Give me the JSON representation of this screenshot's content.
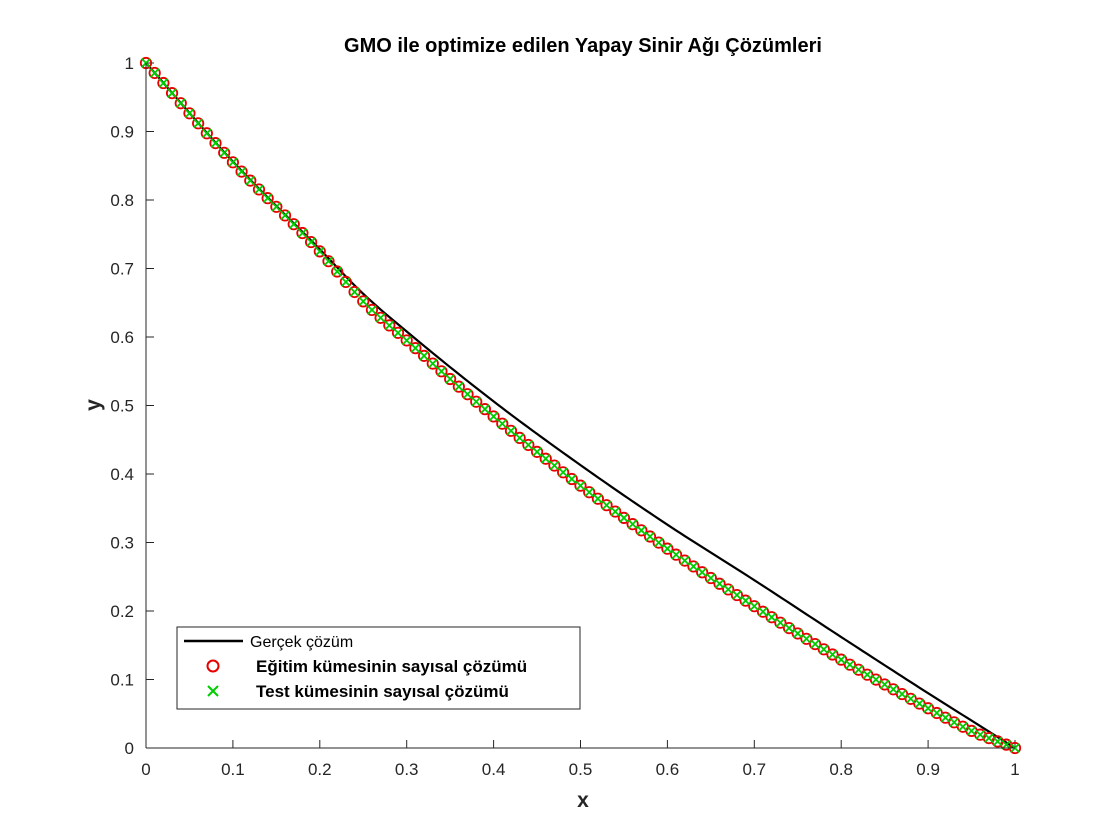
{
  "chart_data": {
    "type": "line",
    "title": "GMO ile optimize edilen Yapay Sinir Ağı Çözümleri",
    "xlabel": "x",
    "ylabel": "y",
    "xlim": [
      0,
      1
    ],
    "ylim": [
      0,
      1
    ],
    "xticks": [
      0,
      0.1,
      0.2,
      0.3,
      0.4,
      0.5,
      0.6,
      0.7,
      0.8,
      0.9,
      1
    ],
    "yticks": [
      0,
      0.1,
      0.2,
      0.3,
      0.4,
      0.5,
      0.6,
      0.7,
      0.8,
      0.9,
      1
    ],
    "xtick_labels": [
      "0",
      "0.1",
      "0.2",
      "0.3",
      "0.4",
      "0.5",
      "0.6",
      "0.7",
      "0.8",
      "0.9",
      "1"
    ],
    "ytick_labels": [
      "0",
      "0.1",
      "0.2",
      "0.3",
      "0.4",
      "0.5",
      "0.6",
      "0.7",
      "0.8",
      "0.9",
      "1"
    ],
    "grid": false,
    "legend_position": "bottom-left",
    "x": [
      0,
      0.1,
      0.2,
      0.25,
      0.3,
      0.4,
      0.5,
      0.6,
      0.7,
      0.8,
      0.9,
      0.95,
      1
    ],
    "series": [
      {
        "name": "Gerçek çözüm",
        "kind": "line",
        "color": "#000000",
        "values": [
          1,
          0.856,
          0.728,
          0.663,
          0.608,
          0.506,
          0.413,
          0.326,
          0.245,
          0.162,
          0.08,
          0.04,
          0
        ]
      },
      {
        "name": "Eğitim kümesinin sayısal çözümü",
        "kind": "marker-circle",
        "color": "#e60000",
        "values": [
          1,
          0.855,
          0.725,
          0.652,
          0.595,
          0.484,
          0.383,
          0.291,
          0.207,
          0.129,
          0.058,
          0.025,
          0
        ]
      },
      {
        "name": "Test kümesinin sayısal çözümü",
        "kind": "marker-x",
        "color": "#00cc00",
        "values": [
          1,
          0.855,
          0.725,
          0.652,
          0.595,
          0.484,
          0.383,
          0.291,
          0.207,
          0.129,
          0.058,
          0.025,
          0
        ]
      }
    ]
  }
}
